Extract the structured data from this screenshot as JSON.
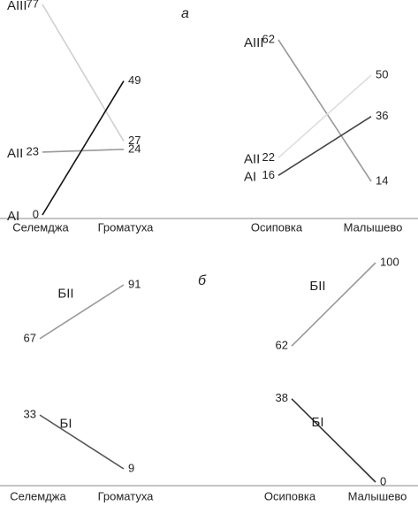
{
  "letters": [
    "а",
    "б"
  ],
  "chart_data": [
    {
      "type": "slope",
      "categories": [
        "Селемджа",
        "Громатуха"
      ],
      "series": [
        {
          "name": "АIII",
          "color": "#cfcfcf",
          "values": [
            77,
            27
          ]
        },
        {
          "name": "АII",
          "color": "#999999",
          "values": [
            23,
            24
          ]
        },
        {
          "name": "АI",
          "color": "#111111",
          "values": [
            0,
            49
          ]
        }
      ]
    },
    {
      "type": "slope",
      "categories": [
        "Осиповка",
        "Малышево"
      ],
      "series": [
        {
          "name": "АIII",
          "color": "#999999",
          "values": [
            62,
            14
          ]
        },
        {
          "name": "АII",
          "color": "#dddddd",
          "values": [
            22,
            50
          ]
        },
        {
          "name": "АI",
          "color": "#444444",
          "values": [
            16,
            36
          ]
        }
      ]
    },
    {
      "type": "slope",
      "categories": [
        "Селемджа",
        "Громатуха"
      ],
      "series": [
        {
          "name": "БII",
          "color": "#999999",
          "values": [
            67,
            91
          ]
        },
        {
          "name": "БI",
          "color": "#555555",
          "values": [
            33,
            9
          ]
        }
      ]
    },
    {
      "type": "slope",
      "categories": [
        "Осиповка",
        "Малышево"
      ],
      "series": [
        {
          "name": "БII",
          "color": "#999999",
          "values": [
            62,
            100
          ]
        },
        {
          "name": "БI",
          "color": "#333333",
          "values": [
            38,
            0
          ]
        }
      ]
    }
  ]
}
